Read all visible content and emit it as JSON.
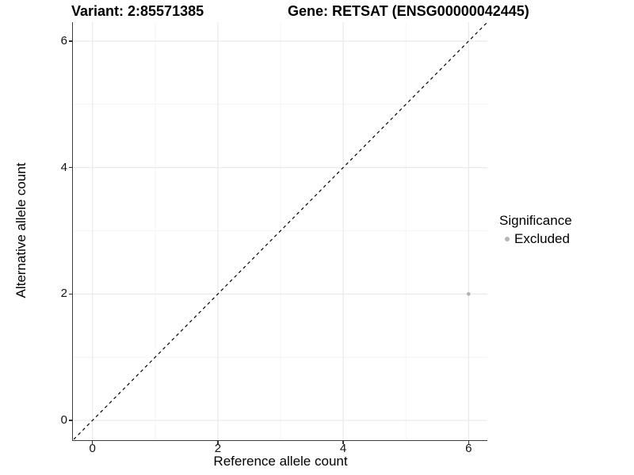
{
  "header": {
    "variant_title": "Variant: 2:85571385",
    "gene_title": "Gene: RETSAT (ENSG00000042445)"
  },
  "legend": {
    "title": "Significance",
    "items": [
      {
        "label": "Excluded",
        "color": "#b5b5b5"
      }
    ]
  },
  "chart_data": {
    "type": "scatter",
    "xlabel": "Reference allele count",
    "ylabel": "Alternative allele count",
    "xlim": [
      -0.3,
      6.3
    ],
    "ylim": [
      -0.3,
      6.3
    ],
    "xticks": [
      0,
      2,
      4,
      6
    ],
    "yticks": [
      0,
      2,
      4,
      6
    ],
    "xticks_minor": [
      1,
      3,
      5
    ],
    "yticks_minor": [
      1,
      3,
      5
    ],
    "grid": "major+minor",
    "legend_position": "right",
    "colors": {
      "major_grid": "#e8e8e8",
      "minor_grid": "#f4f4f4",
      "axis_line": "#3d3d3d",
      "reference_line": "#000000"
    },
    "reference_line": {
      "type": "identity",
      "style": "dashed",
      "from": [
        -0.3,
        -0.3
      ],
      "to": [
        6.3,
        6.3
      ],
      "color": "#000000"
    },
    "series": [
      {
        "name": "Excluded",
        "color": "#b5b5b5",
        "points": [
          {
            "x": 6,
            "y": 2
          }
        ]
      }
    ]
  }
}
